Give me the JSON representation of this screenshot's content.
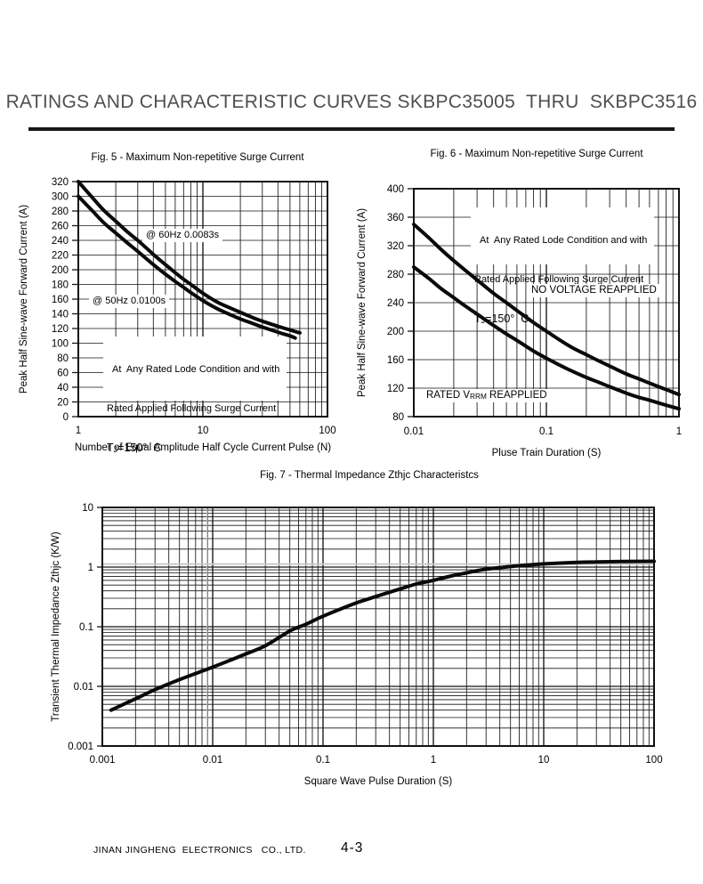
{
  "page": {
    "title": "RATINGS AND CHARACTERISTIC CURVES SKBPC35005  THRU  SKBPC3516",
    "footer": {
      "company": "JINAN JINGHENG  ELECTRONICS   CO., LTD.",
      "page_number": "4-3"
    }
  },
  "chart_data": [
    {
      "id": "fig5",
      "type": "line",
      "title": "Fig. 5 - Maximum Non-repetitive Surge Current",
      "xlabel": "Number of  Equal Amplitude Half Cycle Current Pulse (N)",
      "ylabel": "Peak Half Sine-wave Forward Current (A)",
      "xscale": "log",
      "yscale": "linear",
      "xlim": [
        1,
        100
      ],
      "ylim": [
        0,
        320
      ],
      "grid": true,
      "legend_position": "none",
      "xticks": [
        [
          1,
          "1"
        ],
        [
          10,
          "10"
        ],
        [
          100,
          "100"
        ]
      ],
      "yticks": [
        [
          0,
          "0"
        ],
        [
          20,
          "20"
        ],
        [
          40,
          "40"
        ],
        [
          60,
          "60"
        ],
        [
          80,
          "80"
        ],
        [
          100,
          "100"
        ],
        [
          120,
          "120"
        ],
        [
          140,
          "140"
        ],
        [
          160,
          "160"
        ],
        [
          180,
          "180"
        ],
        [
          200,
          "200"
        ],
        [
          220,
          "220"
        ],
        [
          240,
          "240"
        ],
        [
          260,
          "260"
        ],
        [
          280,
          "280"
        ],
        [
          300,
          "300"
        ],
        [
          320,
          "320"
        ]
      ],
      "series": [
        {
          "name": "@ 60Hz 0.0083s",
          "points": [
            [
              1,
              320
            ],
            [
              1.3,
              298
            ],
            [
              1.6,
              281
            ],
            [
              2,
              266
            ],
            [
              2.5,
              251
            ],
            [
              3,
              240
            ],
            [
              4,
              221
            ],
            [
              5,
              207
            ],
            [
              6,
              196
            ],
            [
              7,
              187
            ],
            [
              8,
              180
            ],
            [
              10,
              168
            ],
            [
              13,
              156
            ],
            [
              16,
              149
            ],
            [
              20,
              142
            ],
            [
              25,
              135
            ],
            [
              30,
              130
            ],
            [
              40,
              123
            ],
            [
              50,
              118
            ],
            [
              60,
              114
            ]
          ]
        },
        {
          "name": "@ 50Hz 0.0100s",
          "points": [
            [
              1,
              300
            ],
            [
              1.3,
              280
            ],
            [
              1.6,
              264
            ],
            [
              2,
              250
            ],
            [
              2.5,
              236
            ],
            [
              3,
              225
            ],
            [
              4,
              207
            ],
            [
              5,
              194
            ],
            [
              6,
              184
            ],
            [
              7,
              176
            ],
            [
              8,
              169
            ],
            [
              10,
              158
            ],
            [
              13,
              147
            ],
            [
              16,
              140
            ],
            [
              20,
              133
            ],
            [
              25,
              127
            ],
            [
              30,
              122
            ],
            [
              40,
              115
            ],
            [
              50,
              110
            ],
            [
              55,
              107
            ]
          ]
        }
      ],
      "annotations": {
        "curve_label_60hz": "@ 60Hz 0.0083s",
        "curve_label_50hz": "@ 50Hz 0.0100s",
        "condition_line1": "At  Any Rated Lode Condition and with",
        "condition_line2": "Rated Applied Following Surge Current",
        "tj_prefix": "T",
        "tj_sub": "J",
        "tj_rest": "=150°  C"
      }
    },
    {
      "id": "fig6",
      "type": "line",
      "title": "Fig. 6 - Maximum Non-repetitive Surge Current",
      "xlabel": "Pluse Train Duration (S)",
      "ylabel": "Peak Half Sine-wave Forward Current (A)",
      "xscale": "log",
      "yscale": "linear",
      "xlim": [
        0.01,
        1
      ],
      "ylim": [
        80,
        400
      ],
      "grid": true,
      "legend_position": "none",
      "xticks": [
        [
          0.01,
          "0.01"
        ],
        [
          0.1,
          "0.1"
        ],
        [
          1,
          "1"
        ]
      ],
      "yticks": [
        [
          80,
          "80"
        ],
        [
          120,
          "120"
        ],
        [
          160,
          "160"
        ],
        [
          200,
          "200"
        ],
        [
          240,
          "240"
        ],
        [
          280,
          "280"
        ],
        [
          320,
          "320"
        ],
        [
          360,
          "360"
        ],
        [
          400,
          "400"
        ]
      ],
      "series": [
        {
          "name": "NO VOLTAGE REAPPLIED",
          "points": [
            [
              0.01,
              350
            ],
            [
              0.013,
              331
            ],
            [
              0.016,
              315
            ],
            [
              0.02,
              299
            ],
            [
              0.025,
              284
            ],
            [
              0.03,
              272
            ],
            [
              0.04,
              253
            ],
            [
              0.05,
              240
            ],
            [
              0.06,
              229
            ],
            [
              0.08,
              212
            ],
            [
              0.1,
              200
            ],
            [
              0.13,
              186
            ],
            [
              0.16,
              176
            ],
            [
              0.2,
              167
            ],
            [
              0.25,
              158
            ],
            [
              0.3,
              151
            ],
            [
              0.4,
              140
            ],
            [
              0.5,
              133
            ],
            [
              0.6,
              127
            ],
            [
              0.8,
              118
            ],
            [
              1,
              111
            ]
          ]
        },
        {
          "name": "RATED VRRM REAPPLIED",
          "points": [
            [
              0.01,
              290
            ],
            [
              0.013,
              274
            ],
            [
              0.016,
              260
            ],
            [
              0.02,
              247
            ],
            [
              0.025,
              234
            ],
            [
              0.03,
              224
            ],
            [
              0.04,
              208
            ],
            [
              0.05,
              196
            ],
            [
              0.06,
              187
            ],
            [
              0.08,
              172
            ],
            [
              0.1,
              162
            ],
            [
              0.13,
              151
            ],
            [
              0.16,
              143
            ],
            [
              0.2,
              135
            ],
            [
              0.25,
              128
            ],
            [
              0.3,
              122
            ],
            [
              0.4,
              113
            ],
            [
              0.5,
              107
            ],
            [
              0.6,
              103
            ],
            [
              0.8,
              96
            ],
            [
              1,
              91
            ]
          ]
        }
      ],
      "annotations": {
        "condition_line1": "At  Any Rated Lode Condition and with",
        "condition_line2": "Rated Applied Following Surge Current",
        "tj_prefix": "T",
        "tj_sub": "J",
        "tj_rest": "=150°  C",
        "no_voltage": "NO VOLTAGE REAPPLIED",
        "rated_prefix": "RATED V",
        "rated_sub": "RRM",
        "rated_suffix": " REAPPLIED"
      }
    },
    {
      "id": "fig7",
      "type": "line",
      "title": "Fig. 7 - Thermal Impedance Zthjc Characteristcs",
      "xlabel": "Square Wave Pulse Duration (S)",
      "ylabel": "Transient Thermal Impedance Zthjc (K/W)",
      "xscale": "log",
      "yscale": "log",
      "xlim": [
        0.001,
        100
      ],
      "ylim": [
        0.001,
        10
      ],
      "grid": true,
      "legend_position": "none",
      "xticks": [
        [
          0.001,
          "0.001"
        ],
        [
          0.01,
          "0.01"
        ],
        [
          0.1,
          "0.1"
        ],
        [
          1,
          "1"
        ],
        [
          10,
          "10"
        ],
        [
          100,
          "100"
        ]
      ],
      "yticks": [
        [
          0.001,
          "0.001"
        ],
        [
          0.01,
          "0.01"
        ],
        [
          0.1,
          "0.1"
        ],
        [
          1,
          "1"
        ],
        [
          10,
          "10"
        ]
      ],
      "series": [
        {
          "name": "Zthjc",
          "points": [
            [
              0.0012,
              0.004
            ],
            [
              0.002,
              0.0062
            ],
            [
              0.003,
              0.0088
            ],
            [
              0.005,
              0.013
            ],
            [
              0.008,
              0.018
            ],
            [
              0.01,
              0.021
            ],
            [
              0.02,
              0.035
            ],
            [
              0.03,
              0.048
            ],
            [
              0.05,
              0.085
            ],
            [
              0.07,
              0.11
            ],
            [
              0.1,
              0.15
            ],
            [
              0.2,
              0.25
            ],
            [
              0.3,
              0.32
            ],
            [
              0.5,
              0.43
            ],
            [
              0.7,
              0.52
            ],
            [
              1,
              0.6
            ],
            [
              1.5,
              0.72
            ],
            [
              2,
              0.8
            ],
            [
              3,
              0.92
            ],
            [
              5,
              1.02
            ],
            [
              7,
              1.08
            ],
            [
              10,
              1.13
            ],
            [
              20,
              1.2
            ],
            [
              30,
              1.22
            ],
            [
              50,
              1.24
            ],
            [
              100,
              1.25
            ]
          ]
        }
      ]
    }
  ]
}
